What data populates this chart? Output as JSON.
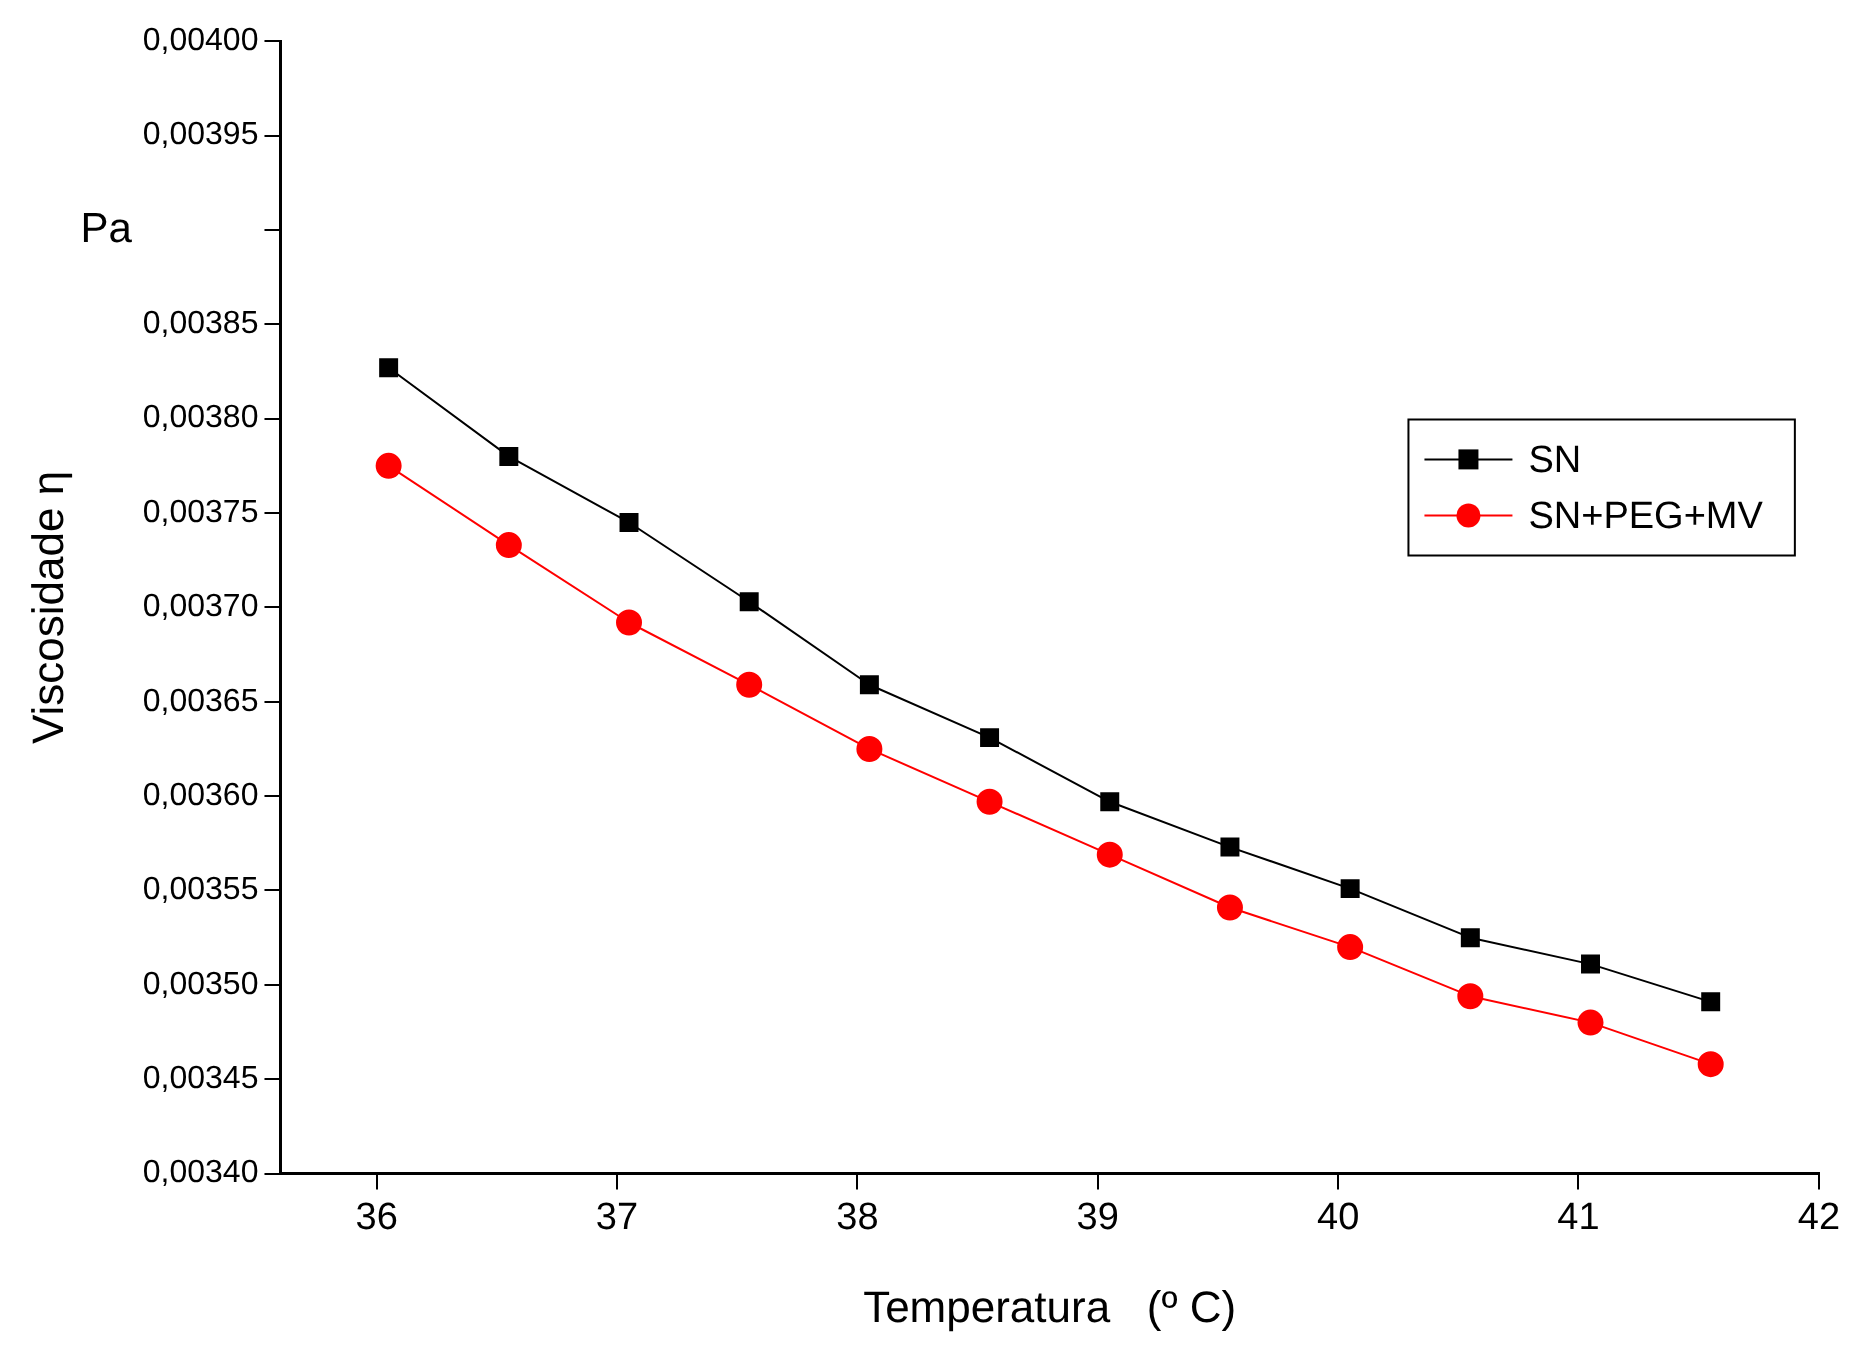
{
  "chart_data": {
    "type": "line",
    "xlabel": "Temperatura   (º C)",
    "ylabel": "Viscosidade η",
    "annotations": [
      "Pa"
    ],
    "x": [
      36.05,
      36.55,
      37.05,
      37.55,
      38.05,
      38.55,
      39.05,
      39.55,
      40.05,
      40.55,
      41.05,
      41.55
    ],
    "series": [
      {
        "name": "SN",
        "color": "#000000",
        "marker": "square",
        "values": [
          0.003827,
          0.00378,
          0.003745,
          0.003703,
          0.003659,
          0.003631,
          0.003597,
          0.003573,
          0.003551,
          0.003525,
          0.003511,
          0.003491
        ]
      },
      {
        "name": "SN+PEG+MV",
        "color": "#ff0000",
        "marker": "circle",
        "values": [
          0.003775,
          0.003733,
          0.003692,
          0.003659,
          0.003625,
          0.003597,
          0.003569,
          0.003541,
          0.00352,
          0.003494,
          0.00348,
          0.003458
        ]
      }
    ],
    "xlim": [
      35.6,
      42
    ],
    "xticks": [
      36,
      37,
      38,
      39,
      40,
      41,
      42
    ],
    "ylim": [
      0.0034,
      0.004
    ],
    "yticks": [
      {
        "value": 0.0034,
        "label": "0,00340"
      },
      {
        "value": 0.00345,
        "label": "0,00345"
      },
      {
        "value": 0.0035,
        "label": "0,00350"
      },
      {
        "value": 0.00355,
        "label": "0,00355"
      },
      {
        "value": 0.0036,
        "label": "0,00360"
      },
      {
        "value": 0.00365,
        "label": "0,00365"
      },
      {
        "value": 0.0037,
        "label": "0,00370"
      },
      {
        "value": 0.00375,
        "label": "0,00375"
      },
      {
        "value": 0.0038,
        "label": "0,00380"
      },
      {
        "value": 0.00385,
        "label": "0,00385"
      },
      {
        "value": 0.0039,
        "label": null
      },
      {
        "value": 0.00395,
        "label": "0,00395"
      },
      {
        "value": 0.004,
        "label": "0,00400"
      }
    ],
    "legend": "right",
    "grid": false,
    "line_style": "solid"
  }
}
